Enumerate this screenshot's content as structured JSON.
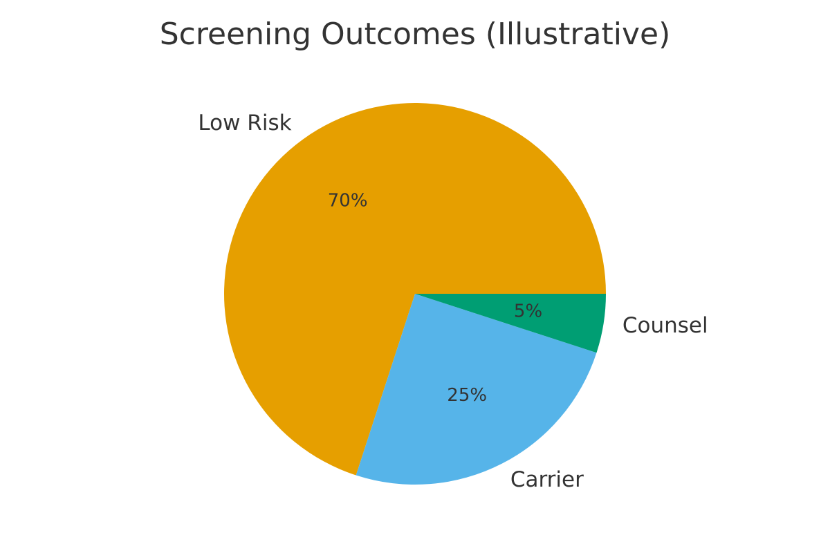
{
  "chart_data": {
    "type": "pie",
    "title": "Screening Outcomes (Illustrative)",
    "start_angle_deg": 0,
    "direction": "counterclockwise",
    "slices": [
      {
        "label": "Low Risk",
        "value": 70,
        "pct_label": "70%",
        "color": "#E69F00"
      },
      {
        "label": "Carrier",
        "value": 25,
        "pct_label": "25%",
        "color": "#56B4E9"
      },
      {
        "label": "Counsel",
        "value": 5,
        "pct_label": "5%",
        "color": "#009E73"
      }
    ]
  }
}
